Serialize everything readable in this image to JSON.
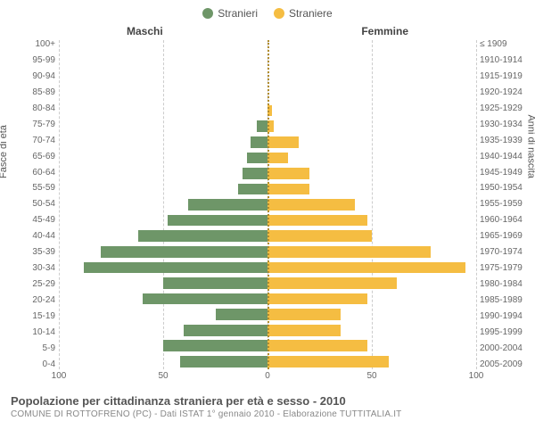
{
  "legend": {
    "male": {
      "label": "Stranieri",
      "color": "#6e9668"
    },
    "female": {
      "label": "Straniere",
      "color": "#f5bd42"
    }
  },
  "column_headers": {
    "male": "Maschi",
    "female": "Femmine"
  },
  "axis_titles": {
    "left": "Fasce di età",
    "right": "Anni di nascita"
  },
  "chart": {
    "type": "population-pyramid",
    "x_max": 100,
    "x_ticks": [
      100,
      50,
      0,
      50,
      100
    ],
    "grid_color": "#cccccc",
    "center_line_color": "#b08c2f",
    "background_color": "#ffffff",
    "bar_male_color": "#6e9668",
    "bar_female_color": "#f5bd42",
    "label_fontsize": 10,
    "rows": [
      {
        "age": "100+",
        "birth": "≤ 1909",
        "m": 0,
        "f": 0
      },
      {
        "age": "95-99",
        "birth": "1910-1914",
        "m": 0,
        "f": 0
      },
      {
        "age": "90-94",
        "birth": "1915-1919",
        "m": 0,
        "f": 0
      },
      {
        "age": "85-89",
        "birth": "1920-1924",
        "m": 0,
        "f": 0
      },
      {
        "age": "80-84",
        "birth": "1925-1929",
        "m": 0,
        "f": 2
      },
      {
        "age": "75-79",
        "birth": "1930-1934",
        "m": 5,
        "f": 3
      },
      {
        "age": "70-74",
        "birth": "1935-1939",
        "m": 8,
        "f": 15
      },
      {
        "age": "65-69",
        "birth": "1940-1944",
        "m": 10,
        "f": 10
      },
      {
        "age": "60-64",
        "birth": "1945-1949",
        "m": 12,
        "f": 20
      },
      {
        "age": "55-59",
        "birth": "1950-1954",
        "m": 14,
        "f": 20
      },
      {
        "age": "50-54",
        "birth": "1955-1959",
        "m": 38,
        "f": 42
      },
      {
        "age": "45-49",
        "birth": "1960-1964",
        "m": 48,
        "f": 48
      },
      {
        "age": "40-44",
        "birth": "1965-1969",
        "m": 62,
        "f": 50
      },
      {
        "age": "35-39",
        "birth": "1970-1974",
        "m": 80,
        "f": 78
      },
      {
        "age": "30-34",
        "birth": "1975-1979",
        "m": 88,
        "f": 95
      },
      {
        "age": "25-29",
        "birth": "1980-1984",
        "m": 50,
        "f": 62
      },
      {
        "age": "20-24",
        "birth": "1985-1989",
        "m": 60,
        "f": 48
      },
      {
        "age": "15-19",
        "birth": "1990-1994",
        "m": 25,
        "f": 35
      },
      {
        "age": "10-14",
        "birth": "1995-1999",
        "m": 40,
        "f": 35
      },
      {
        "age": "5-9",
        "birth": "2000-2004",
        "m": 50,
        "f": 48
      },
      {
        "age": "0-4",
        "birth": "2005-2009",
        "m": 42,
        "f": 58
      }
    ]
  },
  "footer": {
    "title": "Popolazione per cittadinanza straniera per età e sesso - 2010",
    "subtitle": "COMUNE DI ROTTOFRENO (PC) - Dati ISTAT 1° gennaio 2010 - Elaborazione TUTTITALIA.IT"
  }
}
